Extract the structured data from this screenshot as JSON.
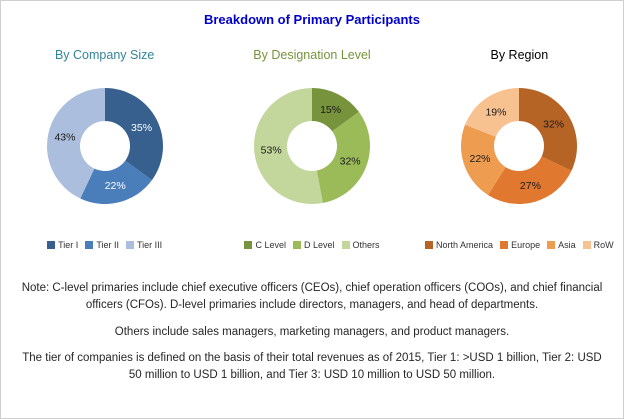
{
  "title": "Breakdown of Primary Participants",
  "title_color": "#0000CC",
  "chart_data": [
    {
      "type": "pie",
      "subtype": "donut",
      "title": "By Company Size",
      "title_color": "#31849B",
      "categories": [
        "Tier I",
        "Tier II",
        "Tier III"
      ],
      "values": [
        35,
        22,
        43
      ],
      "labels": [
        "35%",
        "22%",
        "43%"
      ],
      "colors": [
        "#37608F",
        "#4A7EBB",
        "#ACBEDD"
      ],
      "label_colors": [
        "#FFFFFF",
        "#FFFFFF",
        "#1A1A1A"
      ],
      "start_angle": 0,
      "direction": "clockwise",
      "legend_position": "bottom"
    },
    {
      "type": "pie",
      "subtype": "donut",
      "title": "By Designation Level",
      "title_color": "#77933C",
      "categories": [
        "C Level",
        "D Level",
        "Others"
      ],
      "values": [
        15,
        32,
        53
      ],
      "labels": [
        "15%",
        "32%",
        "53%"
      ],
      "colors": [
        "#77933C",
        "#9BBB59",
        "#C3D69B"
      ],
      "label_colors": [
        "#1A1A1A",
        "#1A1A1A",
        "#1A1A1A"
      ],
      "start_angle": 0,
      "direction": "clockwise",
      "legend_position": "bottom"
    },
    {
      "type": "pie",
      "subtype": "donut",
      "title": "By Region",
      "title_color": "#000000",
      "categories": [
        "North America",
        "Europe",
        "Asia",
        "RoW"
      ],
      "values": [
        32,
        27,
        22,
        19
      ],
      "labels": [
        "32%",
        "27%",
        "22%",
        "19%"
      ],
      "colors": [
        "#B56425",
        "#E0782F",
        "#EE9D50",
        "#F7C290"
      ],
      "label_colors": [
        "#1A1A1A",
        "#1A1A1A",
        "#1A1A1A",
        "#1A1A1A"
      ],
      "start_angle": 0,
      "direction": "clockwise",
      "legend_position": "bottom"
    }
  ],
  "notes": [
    "Note: C-level primaries include chief executive officers (CEOs), chief operation officers (COOs), and chief financial officers (CFOs). D-level primaries include directors, managers, and head of departments.",
    "Others include sales managers, marketing managers, and product managers.",
    "The tier of companies is defined on the basis of their total revenues as of 2015, Tier 1: >USD 1 billion, Tier 2: USD 50 million to USD 1 billion, and Tier 3: USD 10 million to USD 50 million."
  ]
}
